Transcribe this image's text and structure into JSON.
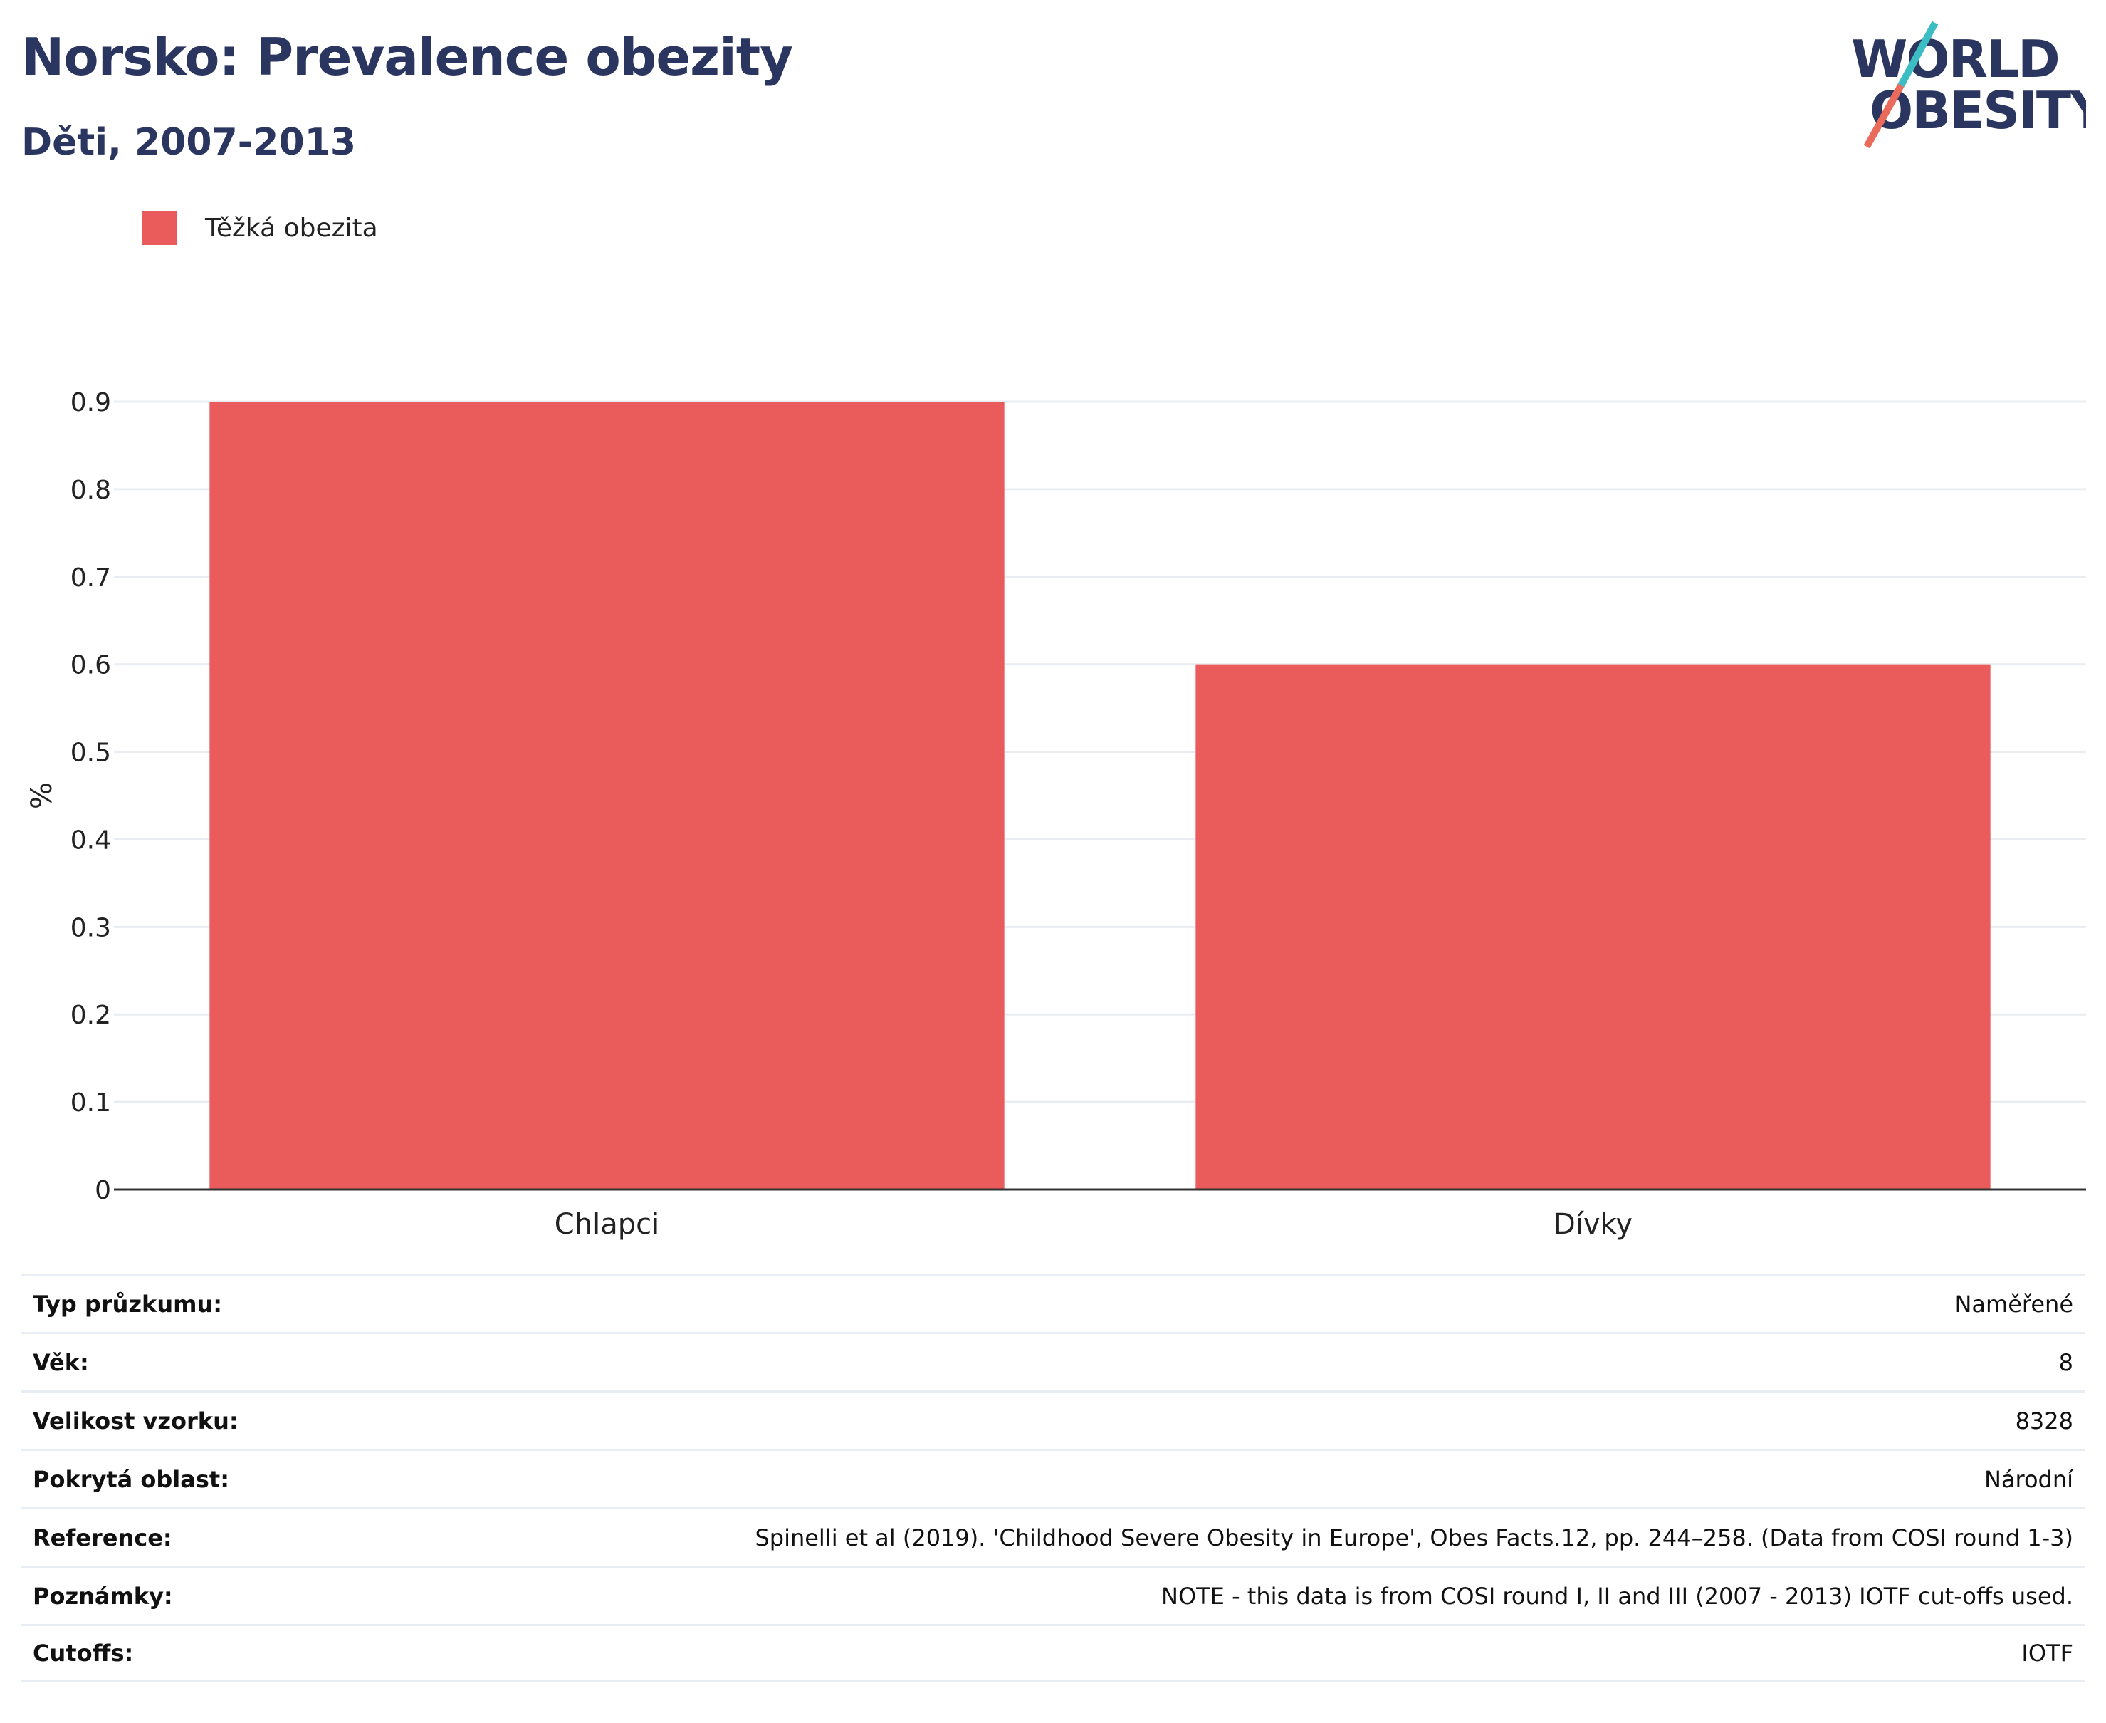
{
  "header": {
    "title": "Norsko: Prevalence obezity",
    "subtitle": "Děti, 2007-2013"
  },
  "logo": {
    "line1": "WORLD",
    "line2": "OBESITY"
  },
  "chart_data": {
    "type": "bar",
    "categories": [
      "Chlapci",
      "Dívky"
    ],
    "series": [
      {
        "name": "Těžká obezita",
        "values": [
          0.9,
          0.6
        ],
        "color": "#ea5b5c"
      }
    ],
    "ylabel": "%",
    "ylim": [
      0,
      0.9
    ],
    "yticks": [
      "0",
      "0.1",
      "0.2",
      "0.3",
      "0.4",
      "0.5",
      "0.6",
      "0.7",
      "0.8",
      "0.9"
    ],
    "grid": true,
    "legend": "top-left"
  },
  "info": [
    {
      "key": "Typ průzkumu:",
      "value": "Naměřené"
    },
    {
      "key": "Věk:",
      "value": "8"
    },
    {
      "key": "Velikost vzorku:",
      "value": "8328"
    },
    {
      "key": "Pokrytá oblast:",
      "value": "Národní"
    },
    {
      "key": "Reference:",
      "value": "Spinelli et al (2019). 'Childhood Severe Obesity in Europe', Obes Facts.12, pp. 244–258. (Data from COSI round 1-3)"
    },
    {
      "key": "Poznámky:",
      "value": "NOTE - this data is from COSI round I, II and III (2007 - 2013) IOTF cut-offs used."
    },
    {
      "key": "Cutoffs:",
      "value": "IOTF"
    }
  ]
}
